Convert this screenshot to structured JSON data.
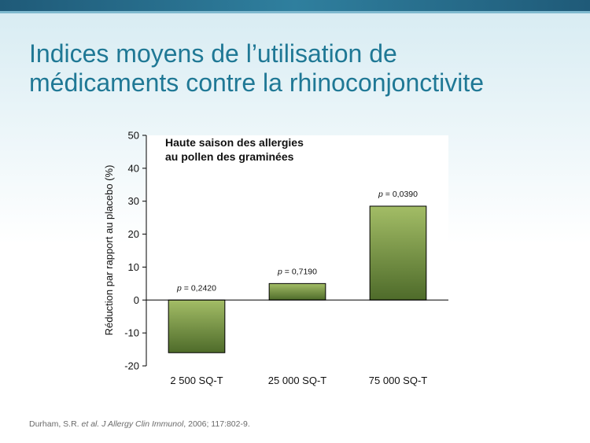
{
  "slide": {
    "title_line1": "Indices moyens de l’utilisation de",
    "title_line2": "médicaments contre la rhinoconjonctivite"
  },
  "citation": {
    "authors": "Durham, S.R. ",
    "etal": "et al.",
    "journal": "J Allergy Clin Immunol",
    "rest": ", 2006; 117:802-9."
  },
  "colors": {
    "header_bar": "#1f5a78",
    "title": "#1f7895",
    "bar_light": "#a3bd66",
    "bar_dark": "#4e6b2a"
  },
  "chart_data": {
    "type": "bar",
    "annotation_line1": "Haute saison des allergies",
    "annotation_line2": "au pollen des graminées",
    "ylabel": "Réduction par rapport au placebo (%)",
    "ylim": [
      -20,
      50
    ],
    "yticks": [
      50,
      40,
      30,
      20,
      10,
      0,
      -10,
      -20
    ],
    "categories": [
      "2 500 SQ-T",
      "25 000 SQ-T",
      "75 000 SQ-T"
    ],
    "values": [
      -16,
      5,
      28.5
    ],
    "p_labels": [
      {
        "prefix": "p",
        "text": " = 0,2420"
      },
      {
        "prefix": "p",
        "text": " = 0,7190"
      },
      {
        "prefix": "p",
        "text": " = 0,0390"
      }
    ]
  }
}
